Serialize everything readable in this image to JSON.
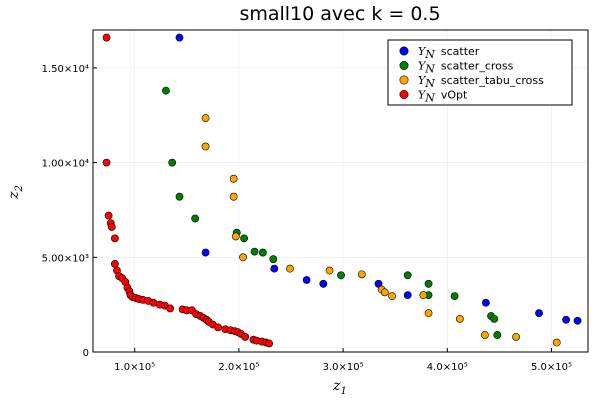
{
  "chart_data": {
    "type": "scatter",
    "title": "small10 avec k = 0.5",
    "xlabel": "z",
    "xlabel_sub": "1",
    "ylabel": "z",
    "ylabel_sub": "2",
    "xlim": [
      60000,
      535000
    ],
    "ylim": [
      0,
      17000
    ],
    "x_ticks": [
      100000,
      200000,
      300000,
      400000,
      500000
    ],
    "x_tick_labels": [
      "1.0×10⁵",
      "2.0×10⁵",
      "3.0×10⁵",
      "4.0×10⁵",
      "5.0×10⁵"
    ],
    "y_ticks": [
      0,
      5000,
      10000,
      15000
    ],
    "y_tick_labels": [
      "0",
      "5.00×10³",
      "1.00×10⁴",
      "1.50×10⁴"
    ],
    "grid": true,
    "legend_position": "top-right",
    "series": [
      {
        "name": "scatter",
        "legend_math": "Y",
        "legend_sub": "N",
        "color": "#0000ff",
        "points": [
          [
            143000,
            16600
          ],
          [
            168000,
            5250
          ],
          [
            234000,
            4400
          ],
          [
            265000,
            3800
          ],
          [
            281000,
            3600
          ],
          [
            334000,
            3600
          ],
          [
            362000,
            3000
          ],
          [
            437000,
            2600
          ],
          [
            488000,
            2050
          ],
          [
            514000,
            1700
          ],
          [
            525000,
            1650
          ]
        ]
      },
      {
        "name": "scatter_cross",
        "legend_math": "Y",
        "legend_sub": "N",
        "color": "#008000",
        "points": [
          [
            130000,
            13800
          ],
          [
            136000,
            10000
          ],
          [
            143000,
            8200
          ],
          [
            158000,
            7050
          ],
          [
            198000,
            6300
          ],
          [
            205000,
            6000
          ],
          [
            215000,
            5300
          ],
          [
            223000,
            5250
          ],
          [
            233000,
            4900
          ],
          [
            298000,
            4050
          ],
          [
            362000,
            4050
          ],
          [
            382000,
            3600
          ],
          [
            382000,
            3000
          ],
          [
            407000,
            2950
          ],
          [
            442000,
            1900
          ],
          [
            445000,
            1750
          ],
          [
            448000,
            900
          ]
        ]
      },
      {
        "name": "scatter_tabu_cross",
        "legend_math": "Y",
        "legend_sub": "N",
        "color": "#ffa500",
        "points": [
          [
            168000,
            12350
          ],
          [
            168000,
            10850
          ],
          [
            195000,
            9150
          ],
          [
            195000,
            8200
          ],
          [
            197000,
            6100
          ],
          [
            204000,
            5000
          ],
          [
            249000,
            4400
          ],
          [
            287000,
            4300
          ],
          [
            318000,
            4100
          ],
          [
            337000,
            3300
          ],
          [
            340000,
            3150
          ],
          [
            347000,
            2950
          ],
          [
            377000,
            3000
          ],
          [
            382000,
            2050
          ],
          [
            412000,
            1750
          ],
          [
            436000,
            900
          ],
          [
            466000,
            800
          ],
          [
            505000,
            500
          ]
        ]
      },
      {
        "name": "vOpt",
        "legend_math": "Y",
        "legend_sub": "N",
        "color": "#ff0000",
        "points": [
          [
            73000,
            16600
          ],
          [
            73000,
            10000
          ],
          [
            75000,
            7200
          ],
          [
            77000,
            6800
          ],
          [
            78000,
            6600
          ],
          [
            81000,
            6000
          ],
          [
            81000,
            4650
          ],
          [
            83000,
            4300
          ],
          [
            85000,
            4000
          ],
          [
            88000,
            3900
          ],
          [
            91000,
            3700
          ],
          [
            93000,
            3400
          ],
          [
            95000,
            3200
          ],
          [
            96000,
            3000
          ],
          [
            98000,
            2900
          ],
          [
            101000,
            2850
          ],
          [
            104000,
            2800
          ],
          [
            108000,
            2750
          ],
          [
            113000,
            2700
          ],
          [
            118000,
            2600
          ],
          [
            124000,
            2500
          ],
          [
            129000,
            2450
          ],
          [
            134000,
            2300
          ],
          [
            146000,
            2250
          ],
          [
            150000,
            2200
          ],
          [
            155000,
            2200
          ],
          [
            159000,
            2000
          ],
          [
            163000,
            1900
          ],
          [
            166000,
            1800
          ],
          [
            169000,
            1700
          ],
          [
            171000,
            1600
          ],
          [
            175000,
            1450
          ],
          [
            180000,
            1300
          ],
          [
            187000,
            1200
          ],
          [
            192000,
            1150
          ],
          [
            196000,
            1100
          ],
          [
            199000,
            1050
          ],
          [
            202000,
            950
          ],
          [
            206000,
            800
          ],
          [
            214000,
            650
          ],
          [
            217000,
            600
          ],
          [
            222000,
            550
          ],
          [
            226000,
            500
          ],
          [
            229000,
            450
          ]
        ]
      }
    ]
  }
}
